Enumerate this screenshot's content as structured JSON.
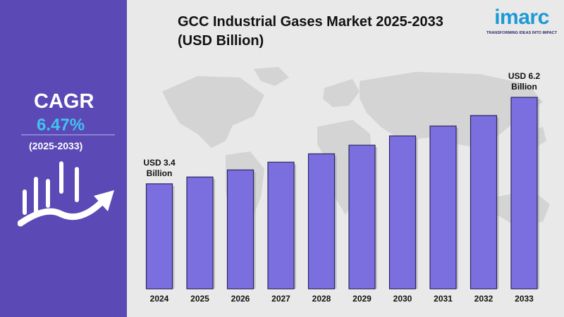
{
  "sidebar": {
    "cagr_label": "CAGR",
    "cagr_value": "6.47%",
    "cagr_period": "(2025-2033)",
    "growth_icon": "bar-growth-arrow-icon"
  },
  "header": {
    "title": "GCC Industrial Gases Market 2025-2033 (USD Billion)"
  },
  "logo": {
    "wordmark": "imarc",
    "tagline": "TRANSFORMING IDEAS INTO IMPACT"
  },
  "colors": {
    "sidebar_bg": "#5b49b5",
    "accent": "#41c3f0",
    "bar_fill": "#7b6fe0",
    "bar_stroke": "#2a2460",
    "background": "#e9e9e9"
  },
  "chart_data": {
    "type": "bar",
    "title": "GCC Industrial Gases Market 2025-2033 (USD Billion)",
    "xlabel": "",
    "ylabel": "",
    "categories": [
      "2024",
      "2025",
      "2026",
      "2027",
      "2028",
      "2029",
      "2030",
      "2031",
      "2032",
      "2033"
    ],
    "values": [
      3.4,
      3.62,
      3.85,
      4.1,
      4.37,
      4.65,
      4.95,
      5.27,
      5.61,
      6.2
    ],
    "ylim": [
      0,
      6.5
    ],
    "grid": false,
    "annotations": [
      {
        "category": "2024",
        "line1": "USD 3.4",
        "line2": "Billion"
      },
      {
        "category": "2033",
        "line1": "USD 6.2",
        "line2": "Billion"
      }
    ]
  }
}
